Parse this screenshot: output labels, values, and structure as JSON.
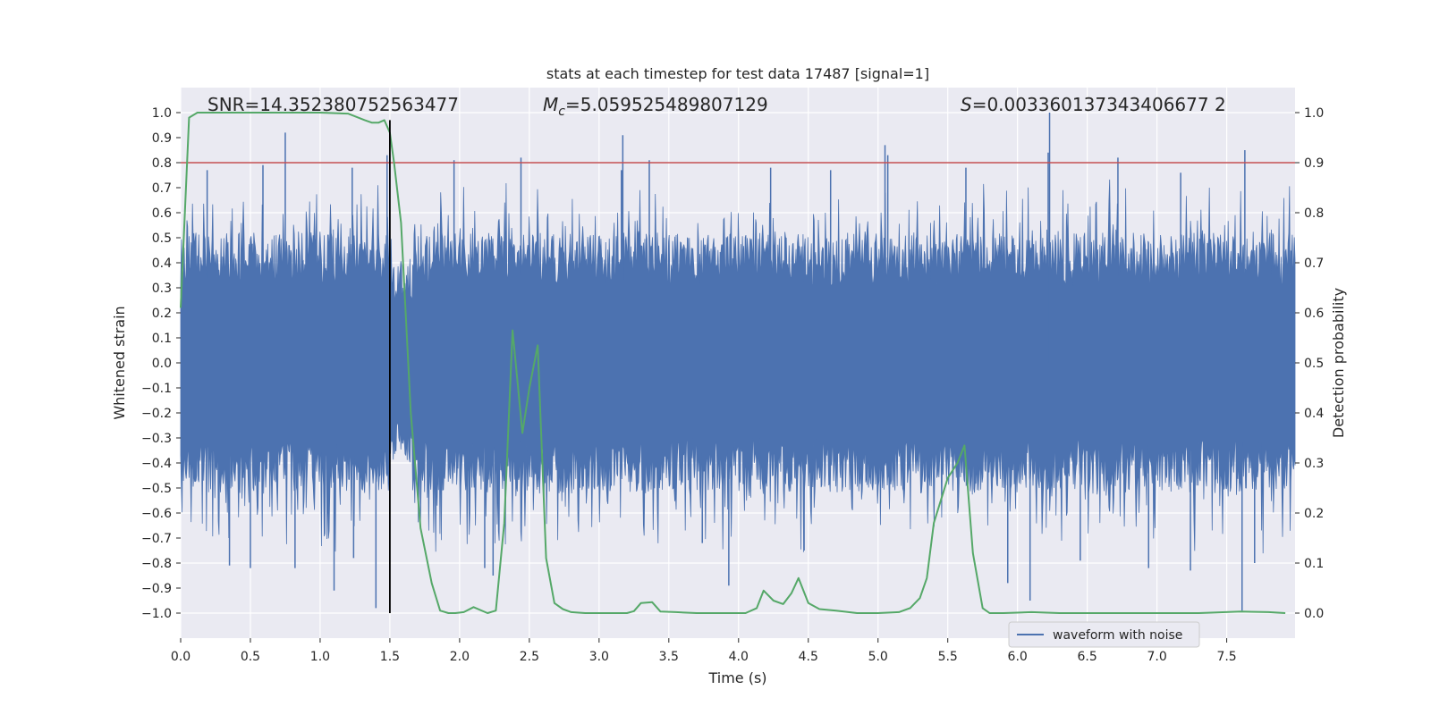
{
  "chart_data": {
    "type": "line",
    "title": "stats at each timestep for test data 17487 [signal=1]",
    "xlabel": "Time (s)",
    "ylabel": "Whitened strain",
    "y2label": "Detection probability",
    "xlim": [
      0.0,
      7.99
    ],
    "ylim": [
      -1.1,
      1.1
    ],
    "y2lim": [
      -0.05,
      1.05
    ],
    "x_ticks": [
      0.0,
      0.5,
      1.0,
      1.5,
      2.0,
      2.5,
      3.0,
      3.5,
      4.0,
      4.5,
      5.0,
      5.5,
      6.0,
      6.5,
      7.0,
      7.5
    ],
    "x_tick_labels": [
      "0.0",
      "0.5",
      "1.0",
      "1.5",
      "2.0",
      "2.5",
      "3.0",
      "3.5",
      "4.0",
      "4.5",
      "5.0",
      "5.5",
      "6.0",
      "6.5",
      "7.0",
      "7.5"
    ],
    "y_ticks": [
      -1.0,
      -0.9,
      -0.8,
      -0.7,
      -0.6,
      -0.5,
      -0.4,
      -0.3,
      -0.2,
      -0.1,
      0.0,
      0.1,
      0.2,
      0.3,
      0.4,
      0.5,
      0.6,
      0.7,
      0.8,
      0.9,
      1.0
    ],
    "y_tick_labels": [
      "−1.0",
      "−0.9",
      "−0.8",
      "−0.7",
      "−0.6",
      "−0.5",
      "−0.4",
      "−0.3",
      "−0.2",
      "−0.1",
      "0.0",
      "0.1",
      "0.2",
      "0.3",
      "0.4",
      "0.5",
      "0.6",
      "0.7",
      "0.8",
      "0.9",
      "1.0"
    ],
    "y2_ticks": [
      0.0,
      0.1,
      0.2,
      0.3,
      0.4,
      0.5,
      0.6,
      0.7,
      0.8,
      0.9,
      1.0
    ],
    "y2_tick_labels": [
      "0.0",
      "0.1",
      "0.2",
      "0.3",
      "0.4",
      "0.5",
      "0.6",
      "0.7",
      "0.8",
      "0.9",
      "1.0"
    ],
    "grid": true,
    "annotations": {
      "snr": "SNR=14.352380752563477",
      "mc_symbol": "M",
      "mc_sub": "c",
      "mc_value": "=5.059525489807129",
      "s_symbol": "S",
      "s_value": "=0.003360137343406677 2"
    },
    "threshold": {
      "y": 0.8,
      "color": "#c44e52"
    },
    "vline": {
      "x": 1.5,
      "y_from": -1.0,
      "y_to": 0.97,
      "color": "#000000"
    },
    "waveform": {
      "name": "waveform with noise",
      "color": "#4c72b0",
      "n_samples": 1600,
      "seed": 17487,
      "core_amplitude": 0.3,
      "spikes_pos": [
        {
          "x": 0.75,
          "y": 0.92
        },
        {
          "x": 0.19,
          "y": 0.77
        },
        {
          "x": 0.59,
          "y": 0.79
        },
        {
          "x": 1.23,
          "y": 0.78
        },
        {
          "x": 1.48,
          "y": 0.83
        },
        {
          "x": 1.96,
          "y": 0.81
        },
        {
          "x": 2.44,
          "y": 0.82
        },
        {
          "x": 3.17,
          "y": 0.91
        },
        {
          "x": 3.16,
          "y": 0.77
        },
        {
          "x": 3.36,
          "y": 0.81
        },
        {
          "x": 4.23,
          "y": 0.78
        },
        {
          "x": 5.05,
          "y": 0.87
        },
        {
          "x": 5.07,
          "y": 0.83
        },
        {
          "x": 6.22,
          "y": 0.84
        },
        {
          "x": 6.23,
          "y": 1.0
        },
        {
          "x": 6.72,
          "y": 0.82
        },
        {
          "x": 7.63,
          "y": 0.85
        },
        {
          "x": 7.17,
          "y": 0.76
        },
        {
          "x": 5.63,
          "y": 0.78
        },
        {
          "x": 4.66,
          "y": 0.77
        }
      ],
      "spikes_neg": [
        {
          "x": 1.4,
          "y": -0.98
        },
        {
          "x": 1.1,
          "y": -0.91
        },
        {
          "x": 0.35,
          "y": -0.81
        },
        {
          "x": 0.5,
          "y": -0.82
        },
        {
          "x": 0.82,
          "y": -0.82
        },
        {
          "x": 2.18,
          "y": -0.82
        },
        {
          "x": 2.24,
          "y": -0.85
        },
        {
          "x": 3.93,
          "y": -0.89
        },
        {
          "x": 4.47,
          "y": -0.75
        },
        {
          "x": 5.93,
          "y": -0.88
        },
        {
          "x": 6.09,
          "y": -0.95
        },
        {
          "x": 6.45,
          "y": -0.79
        },
        {
          "x": 6.94,
          "y": -0.82
        },
        {
          "x": 7.24,
          "y": -0.83
        },
        {
          "x": 7.61,
          "y": -0.99
        },
        {
          "x": 7.7,
          "y": -0.8
        },
        {
          "x": 1.24,
          "y": -0.78
        },
        {
          "x": 3.74,
          "y": -0.72
        }
      ]
    },
    "detection_probability": {
      "color": "#55a868",
      "x": [
        0.0,
        0.06,
        0.12,
        0.25,
        0.5,
        0.8,
        1.0,
        1.2,
        1.32,
        1.37,
        1.42,
        1.46,
        1.5,
        1.53,
        1.58,
        1.65,
        1.72,
        1.8,
        1.86,
        1.92,
        1.97,
        2.03,
        2.1,
        2.2,
        2.26,
        2.32,
        2.38,
        2.45,
        2.5,
        2.56,
        2.62,
        2.68,
        2.74,
        2.8,
        2.9,
        3.0,
        3.1,
        3.2,
        3.25,
        3.3,
        3.38,
        3.44,
        3.55,
        3.7,
        3.85,
        4.0,
        4.05,
        4.13,
        4.18,
        4.25,
        4.32,
        4.38,
        4.43,
        4.5,
        4.58,
        4.7,
        4.85,
        5.0,
        5.15,
        5.23,
        5.3,
        5.35,
        5.4,
        5.5,
        5.57,
        5.62,
        5.68,
        5.75,
        5.8,
        5.9,
        6.1,
        6.3,
        6.6,
        7.0,
        7.3,
        7.6,
        7.8,
        7.92
      ],
      "y": [
        0.61,
        0.99,
        1.0,
        1.0,
        1.0,
        1.0,
        1.0,
        0.998,
        0.985,
        0.98,
        0.98,
        0.985,
        0.96,
        0.9,
        0.78,
        0.4,
        0.17,
        0.06,
        0.005,
        0.0,
        0.0,
        0.002,
        0.012,
        0.0,
        0.005,
        0.18,
        0.565,
        0.36,
        0.45,
        0.535,
        0.11,
        0.02,
        0.008,
        0.002,
        0.0,
        0.0,
        0.0,
        0.0,
        0.004,
        0.02,
        0.022,
        0.003,
        0.002,
        0.0,
        0.0,
        0.0,
        0.0,
        0.01,
        0.045,
        0.025,
        0.018,
        0.04,
        0.07,
        0.02,
        0.008,
        0.005,
        0.0,
        0.0,
        0.002,
        0.01,
        0.03,
        0.07,
        0.18,
        0.27,
        0.3,
        0.335,
        0.12,
        0.01,
        0.0,
        0.0,
        0.002,
        0.0,
        0.0,
        0.0,
        0.0,
        0.003,
        0.002,
        0.0
      ]
    },
    "legend": {
      "label": "waveform with noise",
      "placement": "lower-center-right"
    }
  }
}
